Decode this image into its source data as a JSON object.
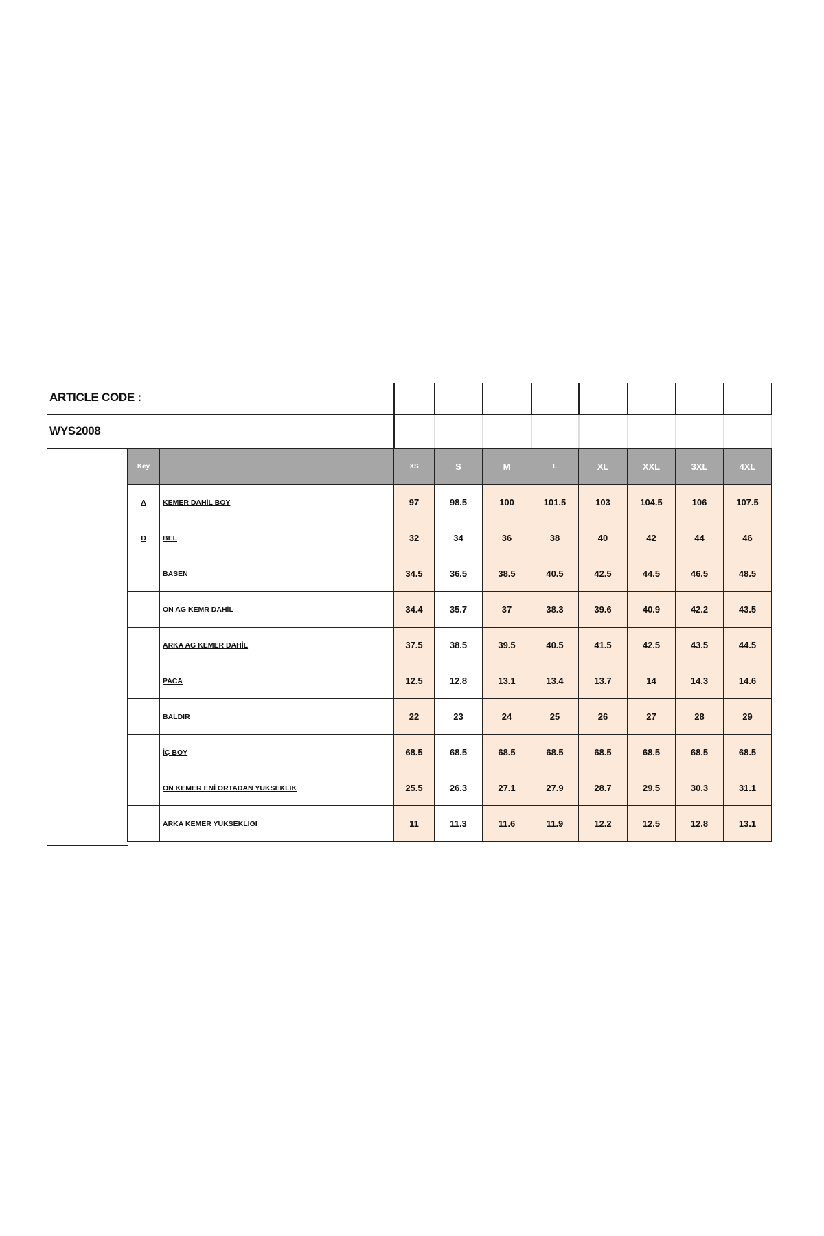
{
  "header": {
    "article_code_label": "ARTICLE CODE :",
    "article_code": "WYS2008"
  },
  "table": {
    "key_header": "Key",
    "sizes": [
      "XS",
      "S",
      "M",
      "L",
      "XL",
      "XXL",
      "3XL",
      "4XL"
    ],
    "rows": [
      {
        "key": "A",
        "label": "KEMER DAHİL BOY",
        "values": [
          "97",
          "98.5",
          "100",
          "101.5",
          "103",
          "104.5",
          "106",
          "107.5"
        ]
      },
      {
        "key": "D",
        "label": "BEL",
        "values": [
          "32",
          "34",
          "36",
          "38",
          "40",
          "42",
          "44",
          "46"
        ]
      },
      {
        "key": "",
        "label": "BASEN",
        "values": [
          "34.5",
          "36.5",
          "38.5",
          "40.5",
          "42.5",
          "44.5",
          "46.5",
          "48.5"
        ]
      },
      {
        "key": "",
        "label": "ON AG KEMR DAHİL",
        "values": [
          "34.4",
          "35.7",
          "37",
          "38.3",
          "39.6",
          "40.9",
          "42.2",
          "43.5"
        ]
      },
      {
        "key": "",
        "label": "ARKA AG KEMER DAHİL",
        "values": [
          "37.5",
          "38.5",
          "39.5",
          "40.5",
          "41.5",
          "42.5",
          "43.5",
          "44.5"
        ]
      },
      {
        "key": "",
        "label": "PACA",
        "values": [
          "12.5",
          "12.8",
          "13.1",
          "13.4",
          "13.7",
          "14",
          "14.3",
          "14.6"
        ]
      },
      {
        "key": "",
        "label": "BALDIR",
        "values": [
          "22",
          "23",
          "24",
          "25",
          "26",
          "27",
          "28",
          "29"
        ]
      },
      {
        "key": "",
        "label": "İÇ BOY",
        "values": [
          "68.5",
          "68.5",
          "68.5",
          "68.5",
          "68.5",
          "68.5",
          "68.5",
          "68.5"
        ]
      },
      {
        "key": "",
        "label": "ON KEMER ENİ ORTADAN YUKSEKLIK",
        "values": [
          "25.5",
          "26.3",
          "27.1",
          "27.9",
          "28.7",
          "29.5",
          "30.3",
          "31.1"
        ]
      },
      {
        "key": "",
        "label": "ARKA KEMER YUKSEKLIGI",
        "values": [
          "11",
          "11.3",
          "11.6",
          "11.9",
          "12.2",
          "12.5",
          "12.8",
          "13.1"
        ]
      }
    ]
  },
  "colors": {
    "header_bg": "#a6a6a6",
    "value_bg": "#fde9d9"
  }
}
